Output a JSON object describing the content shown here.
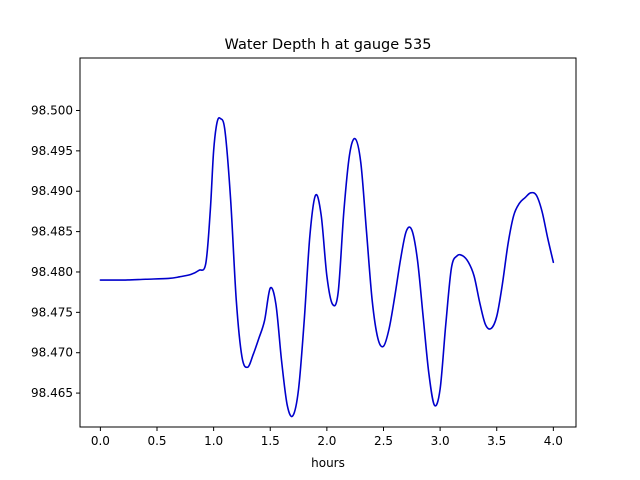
{
  "chart_data": {
    "type": "line",
    "title": "Water Depth h at gauge 535",
    "xlabel": "hours",
    "ylabel": "",
    "xlim": [
      -0.18,
      4.2
    ],
    "ylim": [
      98.4608,
      98.5065
    ],
    "x_ticks": [
      0.0,
      0.5,
      1.0,
      1.5,
      2.0,
      2.5,
      3.0,
      3.5,
      4.0
    ],
    "x_tick_labels": [
      "0.0",
      "0.5",
      "1.0",
      "1.5",
      "2.0",
      "2.5",
      "3.0",
      "3.5",
      "4.0"
    ],
    "y_ticks": [
      98.465,
      98.47,
      98.475,
      98.48,
      98.485,
      98.49,
      98.495,
      98.5
    ],
    "y_tick_labels": [
      "98.465",
      "98.470",
      "98.475",
      "98.480",
      "98.485",
      "98.490",
      "98.495",
      "98.500"
    ],
    "grid": false,
    "series": [
      {
        "color": "#0000cc",
        "x": [
          0.0,
          0.2,
          0.4,
          0.6,
          0.7,
          0.8,
          0.87,
          0.93,
          0.97,
          1.0,
          1.03,
          1.06,
          1.1,
          1.15,
          1.2,
          1.25,
          1.3,
          1.35,
          1.4,
          1.45,
          1.5,
          1.55,
          1.6,
          1.65,
          1.7,
          1.75,
          1.8,
          1.85,
          1.9,
          1.95,
          2.0,
          2.05,
          2.1,
          2.15,
          2.2,
          2.25,
          2.3,
          2.35,
          2.4,
          2.45,
          2.5,
          2.55,
          2.6,
          2.65,
          2.7,
          2.75,
          2.8,
          2.85,
          2.9,
          2.95,
          3.0,
          3.05,
          3.1,
          3.15,
          3.2,
          3.25,
          3.3,
          3.35,
          3.4,
          3.45,
          3.5,
          3.55,
          3.6,
          3.65,
          3.7,
          3.75,
          3.8,
          3.85,
          3.9,
          3.95,
          4.0
        ],
        "y": [
          98.479,
          98.479,
          98.4791,
          98.4792,
          98.4794,
          98.4797,
          98.4802,
          98.481,
          98.4875,
          98.495,
          98.4985,
          98.499,
          98.4975,
          98.489,
          98.4765,
          98.4695,
          98.4682,
          98.4698,
          98.4718,
          98.474,
          98.478,
          98.476,
          98.469,
          98.4635,
          98.4622,
          98.4655,
          98.474,
          98.4845,
          98.4895,
          98.487,
          98.4795,
          98.476,
          98.4775,
          98.4875,
          98.4945,
          98.4965,
          98.4935,
          98.485,
          98.4765,
          98.4718,
          98.4708,
          98.473,
          98.477,
          98.4815,
          98.485,
          98.4852,
          98.4815,
          98.4745,
          98.4675,
          98.4635,
          98.4655,
          98.4735,
          98.4805,
          98.482,
          98.482,
          98.4812,
          98.4795,
          98.4762,
          98.4735,
          98.473,
          98.4745,
          98.4785,
          98.4835,
          98.487,
          98.4885,
          98.4892,
          98.4898,
          98.4895,
          98.4875,
          98.4842,
          98.4812
        ]
      }
    ]
  }
}
